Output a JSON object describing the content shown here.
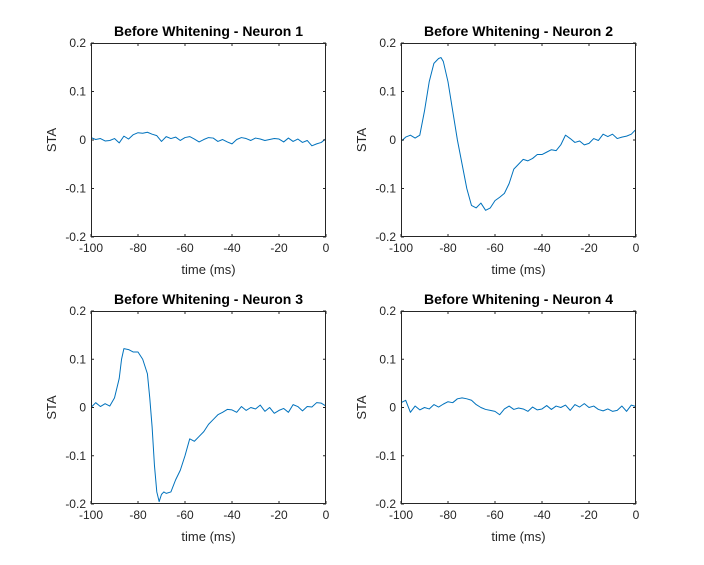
{
  "figure": {
    "background": "#ffffff",
    "axes_color": "#262626"
  },
  "chart_data": [
    {
      "type": "line",
      "title": "Before Whitening - Neuron 1",
      "xlabel": "time (ms)",
      "ylabel": "STA",
      "xlim": [
        -100,
        0
      ],
      "ylim": [
        -0.2,
        0.2
      ],
      "xticks": [
        -100,
        -80,
        -60,
        -40,
        -20,
        0
      ],
      "yticks": [
        -0.2,
        -0.1,
        0,
        0.1,
        0.2
      ],
      "xtick_labels": [
        "-100",
        "-80",
        "-60",
        "-40",
        "-20",
        "0"
      ],
      "ytick_labels": [
        "-0.2",
        "-0.1",
        "0",
        "0.1",
        "0.2"
      ],
      "grid": false,
      "box": true,
      "series": [
        {
          "color": "#0072bd",
          "x": [
            -100,
            -98,
            -96,
            -94,
            -92,
            -90,
            -88,
            -86,
            -84,
            -82,
            -80,
            -78,
            -76,
            -74,
            -72,
            -70,
            -68,
            -66,
            -64,
            -62,
            -60,
            -58,
            -56,
            -54,
            -52,
            -50,
            -48,
            -46,
            -44,
            -42,
            -40,
            -38,
            -36,
            -34,
            -32,
            -30,
            -28,
            -26,
            -24,
            -22,
            -20,
            -18,
            -16,
            -14,
            -12,
            -10,
            -8,
            -6,
            -4,
            -2,
            0
          ],
          "y": [
            0.005,
            0.001,
            0.003,
            -0.002,
            -0.001,
            0.003,
            -0.006,
            0.008,
            0.002,
            0.011,
            0.015,
            0.014,
            0.016,
            0.012,
            0.009,
            -0.003,
            0.007,
            0.003,
            0.006,
            -0.001,
            0.005,
            0.007,
            0.002,
            -0.004,
            0.001,
            0.005,
            0.004,
            -0.003,
            0.001,
            -0.004,
            -0.008,
            0.001,
            0.005,
            0.003,
            -0.001,
            0.004,
            0.002,
            -0.001,
            0.001,
            0.003,
            0.002,
            -0.004,
            0.004,
            -0.003,
            0.002,
            -0.005,
            -0.001,
            -0.012,
            -0.008,
            -0.005,
            0.003
          ]
        }
      ]
    },
    {
      "type": "line",
      "title": "Before Whitening - Neuron 2",
      "xlabel": "time (ms)",
      "ylabel": "STA",
      "xlim": [
        -100,
        0
      ],
      "ylim": [
        -0.2,
        0.2
      ],
      "xticks": [
        -100,
        -80,
        -60,
        -40,
        -20,
        0
      ],
      "yticks": [
        -0.2,
        -0.1,
        0,
        0.1,
        0.2
      ],
      "xtick_labels": [
        "-100",
        "-80",
        "-60",
        "-40",
        "-20",
        "0"
      ],
      "ytick_labels": [
        "-0.2",
        "-0.1",
        "0",
        "0.1",
        "0.2"
      ],
      "grid": false,
      "box": true,
      "series": [
        {
          "color": "#0072bd",
          "x": [
            -100,
            -98,
            -96,
            -94,
            -92,
            -90,
            -88,
            -86,
            -84,
            -83,
            -82,
            -80,
            -78,
            -76,
            -74,
            -72,
            -70,
            -68,
            -66,
            -64,
            -62,
            -60,
            -58,
            -56,
            -54,
            -52,
            -50,
            -48,
            -46,
            -44,
            -42,
            -40,
            -38,
            -36,
            -34,
            -32,
            -30,
            -28,
            -26,
            -24,
            -22,
            -20,
            -18,
            -16,
            -14,
            -12,
            -10,
            -8,
            -6,
            -4,
            -2,
            0
          ],
          "y": [
            -0.003,
            0.006,
            0.01,
            0.004,
            0.01,
            0.06,
            0.12,
            0.158,
            0.168,
            0.17,
            0.162,
            0.12,
            0.06,
            0.0,
            -0.05,
            -0.1,
            -0.135,
            -0.14,
            -0.13,
            -0.145,
            -0.14,
            -0.125,
            -0.118,
            -0.11,
            -0.09,
            -0.06,
            -0.05,
            -0.04,
            -0.043,
            -0.038,
            -0.03,
            -0.03,
            -0.025,
            -0.02,
            -0.022,
            -0.01,
            0.01,
            0.003,
            -0.005,
            -0.002,
            -0.01,
            -0.007,
            0.003,
            -0.001,
            0.012,
            0.007,
            0.012,
            0.003,
            0.006,
            0.008,
            0.012,
            0.022
          ]
        }
      ]
    },
    {
      "type": "line",
      "title": "Before Whitening - Neuron 3",
      "xlabel": "time (ms)",
      "ylabel": "STA",
      "xlim": [
        -100,
        0
      ],
      "ylim": [
        -0.2,
        0.2
      ],
      "xticks": [
        -100,
        -80,
        -60,
        -40,
        -20,
        0
      ],
      "yticks": [
        -0.2,
        -0.1,
        0,
        0.1,
        0.2
      ],
      "xtick_labels": [
        "-100",
        "-80",
        "-60",
        "-40",
        "-20",
        "0"
      ],
      "ytick_labels": [
        "-0.2",
        "-0.1",
        "0",
        "0.1",
        "0.2"
      ],
      "grid": false,
      "box": true,
      "series": [
        {
          "color": "#0072bd",
          "x": [
            -100,
            -98,
            -96,
            -94,
            -92,
            -90,
            -88,
            -87,
            -86,
            -84,
            -82,
            -80,
            -78,
            -76,
            -75,
            -74,
            -73,
            -72,
            -71,
            -70,
            -69,
            -68,
            -66,
            -64,
            -62,
            -60,
            -58,
            -56,
            -54,
            -52,
            -50,
            -48,
            -46,
            -44,
            -42,
            -40,
            -38,
            -36,
            -34,
            -32,
            -30,
            -28,
            -26,
            -24,
            -22,
            -20,
            -18,
            -16,
            -14,
            -12,
            -10,
            -8,
            -6,
            -4,
            -2,
            0
          ],
          "y": [
            0.0,
            0.01,
            0.002,
            0.008,
            0.003,
            0.02,
            0.06,
            0.1,
            0.122,
            0.12,
            0.115,
            0.115,
            0.1,
            0.07,
            0.02,
            -0.04,
            -0.12,
            -0.175,
            -0.195,
            -0.18,
            -0.175,
            -0.178,
            -0.175,
            -0.15,
            -0.13,
            -0.1,
            -0.065,
            -0.07,
            -0.06,
            -0.05,
            -0.035,
            -0.025,
            -0.015,
            -0.01,
            -0.004,
            -0.005,
            -0.01,
            0.002,
            -0.006,
            0.0,
            -0.003,
            0.005,
            -0.008,
            0.0,
            -0.012,
            -0.006,
            -0.002,
            -0.01,
            0.006,
            0.002,
            -0.007,
            0.002,
            0.001,
            0.01,
            0.009,
            0.003
          ]
        }
      ]
    },
    {
      "type": "line",
      "title": "Before Whitening - Neuron 4",
      "xlabel": "time (ms)",
      "ylabel": "STA",
      "xlim": [
        -100,
        0
      ],
      "ylim": [
        -0.2,
        0.2
      ],
      "xticks": [
        -100,
        -80,
        -60,
        -40,
        -20,
        0
      ],
      "yticks": [
        -0.2,
        -0.1,
        0,
        0.1,
        0.2
      ],
      "xtick_labels": [
        "-100",
        "-80",
        "-60",
        "-40",
        "-20",
        "0"
      ],
      "ytick_labels": [
        "-0.2",
        "-0.1",
        "0",
        "0.1",
        "0.2"
      ],
      "grid": false,
      "box": true,
      "series": [
        {
          "color": "#0072bd",
          "x": [
            -100,
            -98,
            -96,
            -94,
            -92,
            -90,
            -88,
            -86,
            -84,
            -82,
            -80,
            -78,
            -76,
            -74,
            -72,
            -70,
            -68,
            -66,
            -64,
            -62,
            -60,
            -58,
            -56,
            -54,
            -52,
            -50,
            -48,
            -46,
            -44,
            -42,
            -40,
            -38,
            -36,
            -34,
            -32,
            -30,
            -28,
            -26,
            -24,
            -22,
            -20,
            -18,
            -16,
            -14,
            -12,
            -10,
            -8,
            -6,
            -4,
            -2,
            0
          ],
          "y": [
            0.01,
            0.015,
            -0.01,
            0.003,
            -0.005,
            0.0,
            -0.003,
            0.006,
            0.001,
            0.007,
            0.012,
            0.01,
            0.018,
            0.02,
            0.018,
            0.015,
            0.006,
            0.0,
            -0.004,
            -0.006,
            -0.008,
            -0.015,
            -0.003,
            0.003,
            -0.004,
            -0.001,
            -0.003,
            -0.008,
            0.001,
            -0.005,
            -0.003,
            0.004,
            -0.004,
            0.003,
            0.0,
            0.005,
            -0.006,
            0.006,
            0.001,
            0.008,
            0.0,
            0.003,
            -0.004,
            -0.007,
            -0.003,
            -0.008,
            -0.006,
            0.003,
            -0.008,
            0.005,
            0.002
          ]
        }
      ]
    }
  ]
}
